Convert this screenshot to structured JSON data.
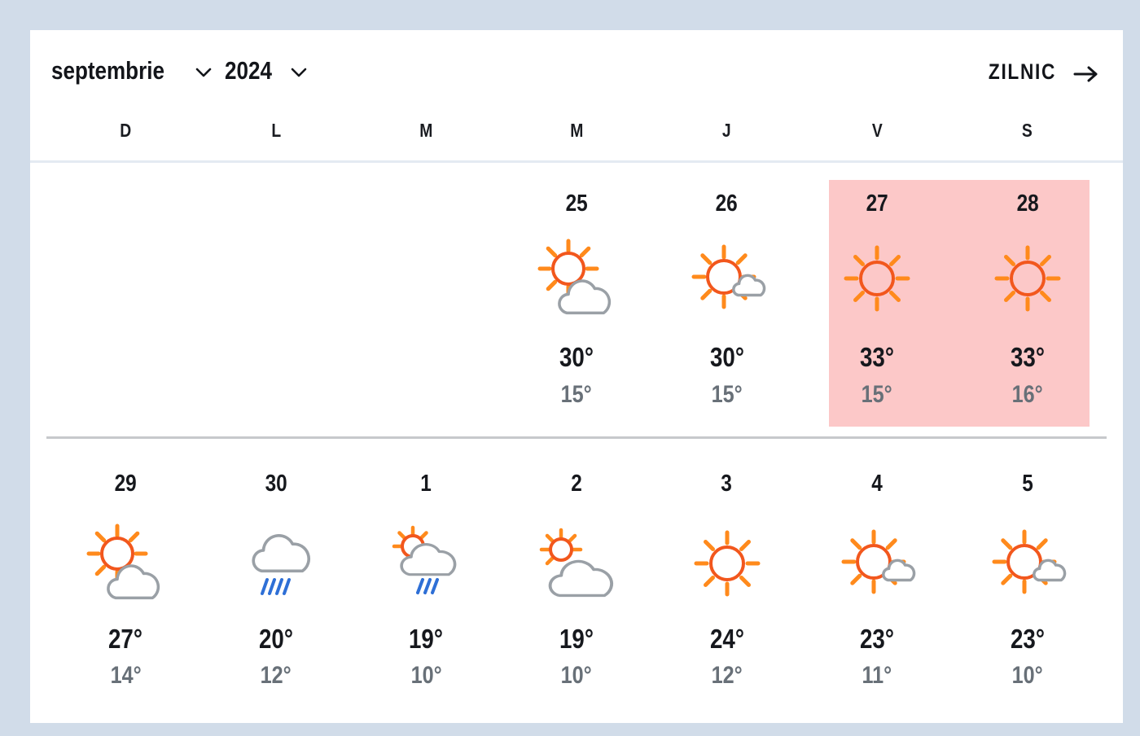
{
  "header": {
    "month": {
      "label": "septembrie",
      "icon": "chevron-down"
    },
    "year": {
      "label": "2024",
      "icon": "chevron-down"
    },
    "daily": {
      "label": "ZILNIC",
      "icon": "arrow-right"
    }
  },
  "weekdays": [
    "D",
    "L",
    "M",
    "M",
    "J",
    "V",
    "S"
  ],
  "colors": {
    "background": "#d1dce9",
    "card": "#ffffff",
    "highlight": "#fcc8c8",
    "sun_circle": "#f2571d",
    "sun_rays": "#ff8a1c",
    "cloud_outline": "#9aa0a6",
    "rain": "#2e6fd6",
    "high_temp": "#16181d",
    "low_temp": "#687078"
  },
  "weeks": [
    {
      "days": [
        {},
        {},
        {},
        {
          "date": "25",
          "icon": "sun-behind-cloud",
          "high": "30°",
          "low": "15°",
          "highlighted": false
        },
        {
          "date": "26",
          "icon": "sun-small-cloud",
          "high": "30°",
          "low": "15°",
          "highlighted": false
        },
        {
          "date": "27",
          "icon": "sunny",
          "high": "33°",
          "low": "15°",
          "highlighted": true
        },
        {
          "date": "28",
          "icon": "sunny",
          "high": "33°",
          "low": "16°",
          "highlighted": true
        }
      ]
    },
    {
      "days": [
        {
          "date": "29",
          "icon": "sun-behind-cloud",
          "high": "27°",
          "low": "14°",
          "highlighted": false
        },
        {
          "date": "30",
          "icon": "rain-cloud",
          "high": "20°",
          "low": "12°",
          "highlighted": false
        },
        {
          "date": "1",
          "icon": "sun-cloud-rain",
          "high": "19°",
          "low": "10°",
          "highlighted": false
        },
        {
          "date": "2",
          "icon": "sun-behind-large-cloud",
          "high": "19°",
          "low": "10°",
          "highlighted": false
        },
        {
          "date": "3",
          "icon": "sunny",
          "high": "24°",
          "low": "12°",
          "highlighted": false
        },
        {
          "date": "4",
          "icon": "sun-small-cloud",
          "high": "23°",
          "low": "11°",
          "highlighted": false
        },
        {
          "date": "5",
          "icon": "sun-small-cloud",
          "high": "23°",
          "low": "10°",
          "highlighted": false
        }
      ]
    }
  ]
}
